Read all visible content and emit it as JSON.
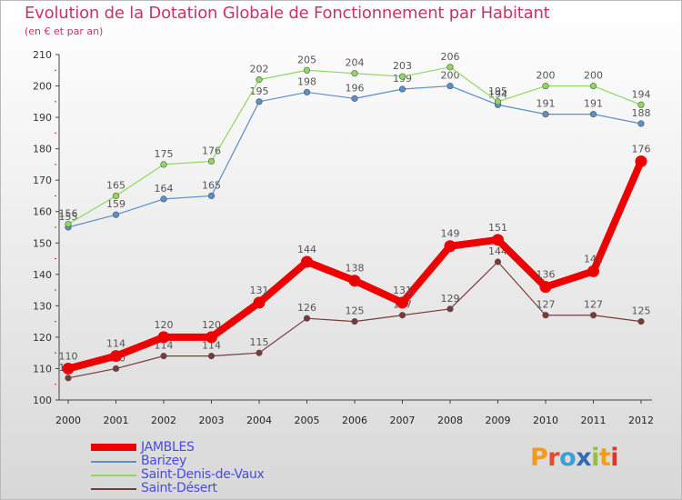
{
  "header": {
    "title": "Evolution de la Dotation Globale de Fonctionnement par Habitant",
    "subtitle": "(en € et par an)"
  },
  "chart_data": {
    "type": "line",
    "title": "Evolution de la Dotation Globale de Fonctionnement par Habitant",
    "subtitle": "(en € et par an)",
    "xlabel": "",
    "ylabel": "",
    "x": [
      "2000",
      "2001",
      "2002",
      "2003",
      "2004",
      "2005",
      "2006",
      "2007",
      "2008",
      "2009",
      "2010",
      "2011",
      "2012"
    ],
    "ylim": [
      100,
      210
    ],
    "yticks": [
      100,
      110,
      120,
      130,
      140,
      150,
      160,
      170,
      180,
      190,
      200,
      210
    ],
    "grid": false,
    "legend_position": "bottom-left",
    "series": [
      {
        "name": "Barizey",
        "color": "#5b8fc7",
        "values": [
          155,
          159,
          164,
          165,
          195,
          198,
          196,
          199,
          200,
          194,
          191,
          191,
          188
        ]
      },
      {
        "name": "Saint-Denis-de-Vaux",
        "color": "#8fd860",
        "values": [
          156,
          165,
          175,
          176,
          202,
          205,
          204,
          203,
          206,
          195,
          200,
          200,
          194
        ]
      },
      {
        "name": "Saint-Désert",
        "color": "#7a3a3a",
        "values": [
          107,
          110,
          114,
          114,
          115,
          126,
          125,
          127,
          129,
          144,
          127,
          127,
          125
        ]
      },
      {
        "name": "JAMBLES",
        "color": "#ee0000",
        "values": [
          110,
          114,
          120,
          120,
          131,
          144,
          138,
          131,
          149,
          151,
          136,
          141,
          176
        ]
      }
    ]
  },
  "legend": {
    "items": [
      {
        "label": "JAMBLES",
        "color": "#ee0000"
      },
      {
        "label": "Barizey",
        "color": "#5b8fc7"
      },
      {
        "label": "Saint-Denis-de-Vaux",
        "color": "#8fd860"
      },
      {
        "label": "Saint-Désert",
        "color": "#7a3a3a"
      }
    ],
    "text_color": "#4a4ae8"
  },
  "logo": {
    "p": "P",
    "r": "r",
    "o": "o",
    "x": "x",
    "i": "i",
    "t": "t",
    "i2": "i"
  }
}
